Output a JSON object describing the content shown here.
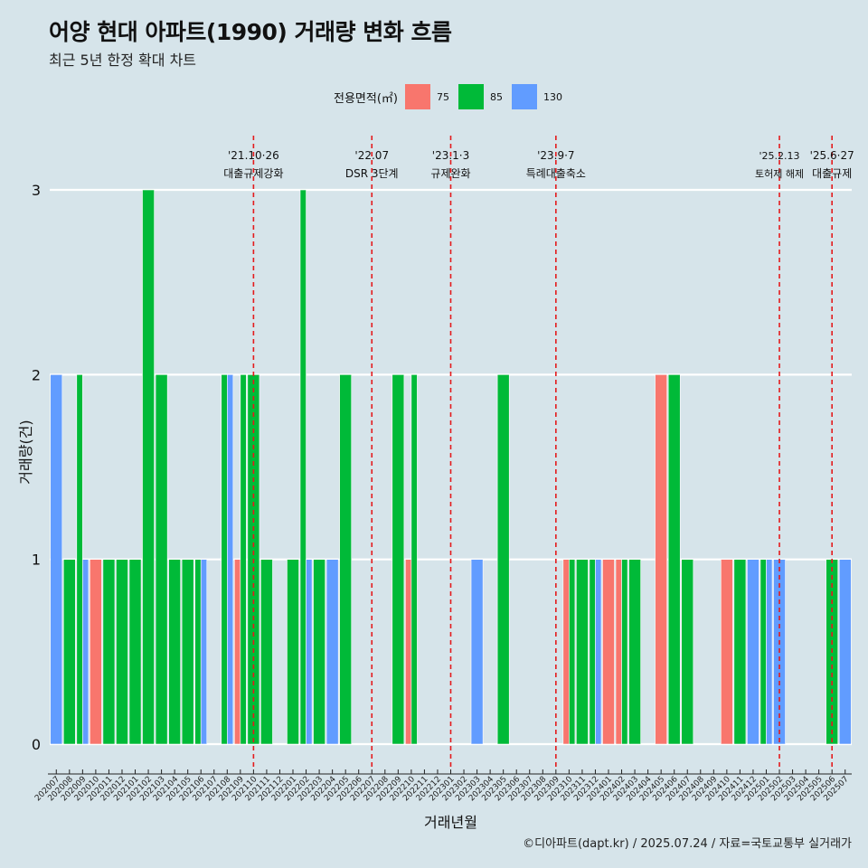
{
  "title": "어양 현대 아파트(1990) 거래량 변화 흐름",
  "subtitle": "최근 5년 한정 확대 차트",
  "caption": "©디아파트(dapt.kr) / 2025.07.24 / 자료=국토교통부 실거래가",
  "legend": {
    "title": "전용면적(㎡)",
    "items": [
      {
        "label": "75",
        "color": "#f8766d"
      },
      {
        "label": "85",
        "color": "#00ba38"
      },
      {
        "label": "130",
        "color": "#619cff"
      }
    ]
  },
  "chart_data": {
    "type": "bar",
    "stacked": "dodge",
    "xlabel": "거래년월",
    "ylabel": "거래량(건)",
    "ylim": [
      0,
      3
    ],
    "yticks": [
      0,
      1,
      2,
      3
    ],
    "grid": "horizontal",
    "legend_position": "top",
    "x_tick_labels": [
      "202007",
      "202008",
      "202009",
      "202010",
      "202011",
      "202012",
      "202101",
      "202102",
      "202103",
      "202104",
      "202105",
      "202106",
      "202107",
      "202108",
      "202109",
      "202110",
      "202111",
      "202112",
      "202201",
      "202202",
      "202203",
      "202204",
      "202205",
      "202206",
      "202207",
      "202208",
      "202209",
      "202210",
      "202211",
      "202212",
      "202301",
      "202302",
      "202303",
      "202304",
      "202305",
      "202306",
      "202307",
      "202308",
      "202309",
      "202310",
      "202311",
      "202312",
      "202401",
      "202402",
      "202403",
      "202404",
      "202405",
      "202406",
      "202407",
      "202408",
      "202409",
      "202410",
      "202411",
      "202412",
      "202501",
      "202502",
      "202503",
      "202504",
      "202505",
      "202506",
      "202507"
    ],
    "bars": [
      {
        "month": "202007",
        "area": "130",
        "value": 2
      },
      {
        "month": "202008",
        "area": "85",
        "value": 1
      },
      {
        "month": "202009",
        "area": "85",
        "value": 2
      },
      {
        "month": "202009",
        "area": "130",
        "value": 1
      },
      {
        "month": "202010",
        "area": "75",
        "value": 1
      },
      {
        "month": "202011",
        "area": "85",
        "value": 1
      },
      {
        "month": "202012",
        "area": "85",
        "value": 1
      },
      {
        "month": "202101",
        "area": "85",
        "value": 1
      },
      {
        "month": "202102",
        "area": "85",
        "value": 3
      },
      {
        "month": "202103",
        "area": "85",
        "value": 2
      },
      {
        "month": "202104",
        "area": "85",
        "value": 1
      },
      {
        "month": "202105",
        "area": "85",
        "value": 1
      },
      {
        "month": "202106",
        "area": "85",
        "value": 1
      },
      {
        "month": "202106",
        "area": "130",
        "value": 1
      },
      {
        "month": "202108",
        "area": "85",
        "value": 2
      },
      {
        "month": "202108",
        "area": "130",
        "value": 2
      },
      {
        "month": "202109",
        "area": "75",
        "value": 1
      },
      {
        "month": "202109",
        "area": "85",
        "value": 2
      },
      {
        "month": "202110",
        "area": "85",
        "value": 2
      },
      {
        "month": "202111",
        "area": "85",
        "value": 1
      },
      {
        "month": "202201",
        "area": "85",
        "value": 1
      },
      {
        "month": "202202",
        "area": "85",
        "value": 3
      },
      {
        "month": "202202",
        "area": "130",
        "value": 1
      },
      {
        "month": "202203",
        "area": "85",
        "value": 1
      },
      {
        "month": "202204",
        "area": "130",
        "value": 1
      },
      {
        "month": "202205",
        "area": "85",
        "value": 2
      },
      {
        "month": "202209",
        "area": "85",
        "value": 2
      },
      {
        "month": "202210",
        "area": "75",
        "value": 1
      },
      {
        "month": "202210",
        "area": "85",
        "value": 2
      },
      {
        "month": "202303",
        "area": "130",
        "value": 1
      },
      {
        "month": "202305",
        "area": "85",
        "value": 2
      },
      {
        "month": "202310",
        "area": "75",
        "value": 1
      },
      {
        "month": "202310",
        "area": "85",
        "value": 1
      },
      {
        "month": "202311",
        "area": "85",
        "value": 1
      },
      {
        "month": "202312",
        "area": "85",
        "value": 1
      },
      {
        "month": "202312",
        "area": "130",
        "value": 1
      },
      {
        "month": "202401",
        "area": "75",
        "value": 1
      },
      {
        "month": "202402",
        "area": "75",
        "value": 1
      },
      {
        "month": "202402",
        "area": "85",
        "value": 1
      },
      {
        "month": "202403",
        "area": "85",
        "value": 1
      },
      {
        "month": "202405",
        "area": "75",
        "value": 2
      },
      {
        "month": "202406",
        "area": "85",
        "value": 2
      },
      {
        "month": "202407",
        "area": "85",
        "value": 1
      },
      {
        "month": "202410",
        "area": "75",
        "value": 1
      },
      {
        "month": "202411",
        "area": "85",
        "value": 1
      },
      {
        "month": "202412",
        "area": "130",
        "value": 1
      },
      {
        "month": "202501",
        "area": "85",
        "value": 1
      },
      {
        "month": "202501",
        "area": "130",
        "value": 1
      },
      {
        "month": "202502",
        "area": "130",
        "value": 1
      },
      {
        "month": "202506",
        "area": "85",
        "value": 1
      },
      {
        "month": "202507",
        "area": "130",
        "value": 1
      }
    ],
    "events": [
      {
        "month": "202110",
        "date": "'21.10·26",
        "label": "대출규제강화"
      },
      {
        "month": "202207",
        "date": "'22.07",
        "label": "DSR 3단계"
      },
      {
        "month": "202301",
        "date": "'23.1·3",
        "label": "규제완화"
      },
      {
        "month": "202309",
        "date": "'23.9·7",
        "label": "특례대출축소"
      },
      {
        "month": "202502",
        "date": "'25.2.13",
        "label": "토허제 해제"
      },
      {
        "month": "202506",
        "date": "'25.6·27",
        "label": "대출규제"
      }
    ]
  }
}
